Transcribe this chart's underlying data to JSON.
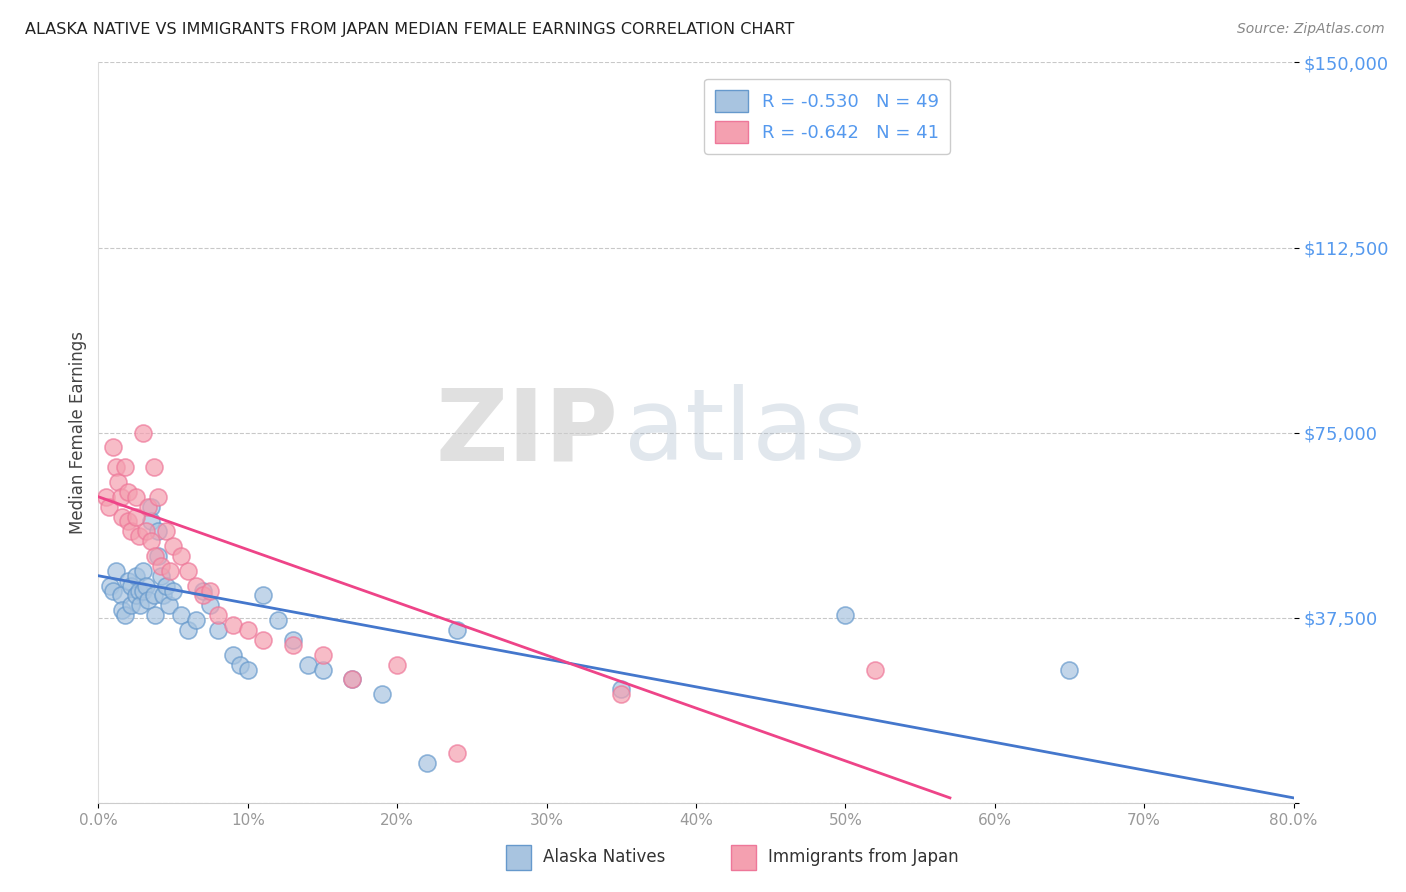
{
  "title": "ALASKA NATIVE VS IMMIGRANTS FROM JAPAN MEDIAN FEMALE EARNINGS CORRELATION CHART",
  "source": "Source: ZipAtlas.com",
  "ylabel": "Median Female Earnings",
  "yticks": [
    0,
    37500,
    75000,
    112500,
    150000
  ],
  "ytick_labels": [
    "",
    "$37,500",
    "$75,000",
    "$112,500",
    "$150,000"
  ],
  "xmin": 0.0,
  "xmax": 0.8,
  "ymin": 0,
  "ymax": 150000,
  "legend_blue_r": "R = -0.530",
  "legend_blue_n": "N = 49",
  "legend_pink_r": "R = -0.642",
  "legend_pink_n": "N = 41",
  "legend_blue_label": "Alaska Natives",
  "legend_pink_label": "Immigrants from Japan",
  "watermark_zip": "ZIP",
  "watermark_atlas": "atlas",
  "blue_color": "#A8C4E0",
  "pink_color": "#F4A0B0",
  "blue_edge_color": "#6699CC",
  "pink_edge_color": "#EE7799",
  "blue_line_color": "#4477CC",
  "pink_line_color": "#EE4488",
  "background_color": "#FFFFFF",
  "grid_color": "#BBBBBB",
  "title_color": "#222222",
  "ytick_color": "#5599EE",
  "xtick_color": "#999999",
  "blue_scatter_x": [
    0.008,
    0.01,
    0.012,
    0.015,
    0.016,
    0.018,
    0.02,
    0.022,
    0.022,
    0.025,
    0.025,
    0.027,
    0.028,
    0.03,
    0.03,
    0.032,
    0.033,
    0.035,
    0.035,
    0.037,
    0.038,
    0.04,
    0.04,
    0.042,
    0.043,
    0.045,
    0.047,
    0.05,
    0.055,
    0.06,
    0.065,
    0.07,
    0.075,
    0.08,
    0.09,
    0.095,
    0.1,
    0.11,
    0.12,
    0.13,
    0.14,
    0.15,
    0.17,
    0.19,
    0.22,
    0.24,
    0.35,
    0.5,
    0.65
  ],
  "blue_scatter_y": [
    44000,
    43000,
    47000,
    42000,
    39000,
    38000,
    45000,
    44000,
    40000,
    46000,
    42000,
    43000,
    40000,
    47000,
    43000,
    44000,
    41000,
    60000,
    57000,
    42000,
    38000,
    55000,
    50000,
    46000,
    42000,
    44000,
    40000,
    43000,
    38000,
    35000,
    37000,
    43000,
    40000,
    35000,
    30000,
    28000,
    27000,
    42000,
    37000,
    33000,
    28000,
    27000,
    25000,
    22000,
    8000,
    35000,
    23000,
    38000,
    27000
  ],
  "pink_scatter_x": [
    0.005,
    0.007,
    0.01,
    0.012,
    0.013,
    0.015,
    0.016,
    0.018,
    0.02,
    0.02,
    0.022,
    0.025,
    0.025,
    0.027,
    0.03,
    0.032,
    0.033,
    0.035,
    0.037,
    0.038,
    0.04,
    0.042,
    0.045,
    0.048,
    0.05,
    0.055,
    0.06,
    0.065,
    0.07,
    0.075,
    0.08,
    0.09,
    0.1,
    0.11,
    0.13,
    0.15,
    0.17,
    0.2,
    0.24,
    0.35,
    0.52
  ],
  "pink_scatter_y": [
    62000,
    60000,
    72000,
    68000,
    65000,
    62000,
    58000,
    68000,
    63000,
    57000,
    55000,
    62000,
    58000,
    54000,
    75000,
    55000,
    60000,
    53000,
    68000,
    50000,
    62000,
    48000,
    55000,
    47000,
    52000,
    50000,
    47000,
    44000,
    42000,
    43000,
    38000,
    36000,
    35000,
    33000,
    32000,
    30000,
    25000,
    28000,
    10000,
    22000,
    27000
  ],
  "blue_trend_x": [
    0.0,
    0.8
  ],
  "blue_trend_y": [
    46000,
    1000
  ],
  "pink_trend_x": [
    0.0,
    0.57
  ],
  "pink_trend_y": [
    62000,
    1000
  ]
}
